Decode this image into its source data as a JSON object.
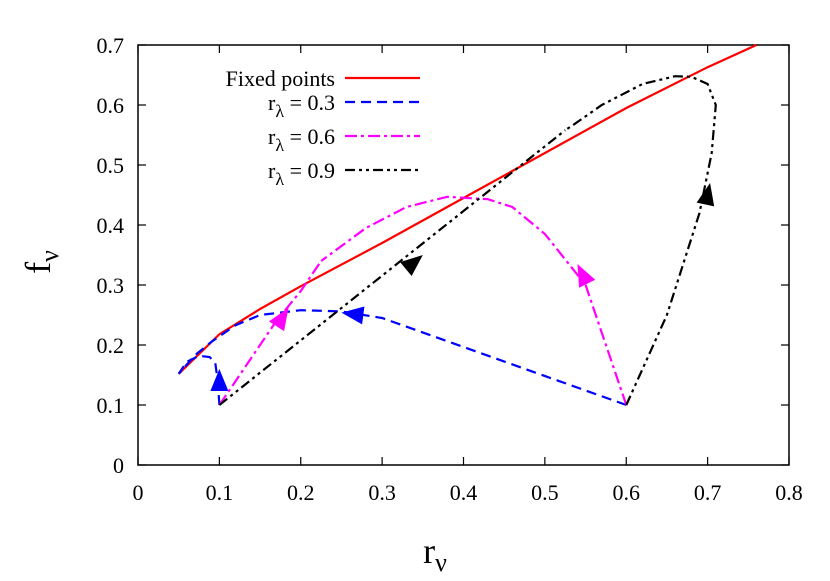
{
  "chart_data": {
    "type": "line",
    "title": "",
    "xlabel": {
      "base": "r",
      "sub": "ν"
    },
    "ylabel": {
      "base": "f",
      "sub": "ν"
    },
    "xlim": [
      0,
      0.8
    ],
    "ylim": [
      0,
      0.7
    ],
    "xticks": [
      "0",
      "0.1",
      "0.2",
      "0.3",
      "0.4",
      "0.5",
      "0.6",
      "0.7",
      "0.8"
    ],
    "yticks": [
      "0",
      "0.1",
      "0.2",
      "0.3",
      "0.4",
      "0.5",
      "0.6",
      "0.7"
    ],
    "grid": false,
    "legend_placement": "top-left",
    "series": [
      {
        "name": {
          "base": "Fixed points",
          "sub": "",
          "rest": ""
        },
        "color": "#ff0000",
        "style": "solid",
        "trajectories": [
          [
            [
              0.05,
              0.152
            ],
            [
              0.1,
              0.218
            ],
            [
              0.15,
              0.26
            ],
            [
              0.2,
              0.298
            ],
            [
              0.3,
              0.37
            ],
            [
              0.4,
              0.445
            ],
            [
              0.5,
              0.52
            ],
            [
              0.6,
              0.595
            ],
            [
              0.7,
              0.663
            ],
            [
              0.76,
              0.7
            ]
          ]
        ],
        "arrows": []
      },
      {
        "name": {
          "base": "r",
          "sub": "λ",
          "rest": " = 0.3"
        },
        "color": "#0000ff",
        "style": "dashed",
        "trajectories": [
          [
            [
              0.6,
              0.1
            ],
            [
              0.3,
              0.245
            ],
            [
              0.25,
              0.256
            ],
            [
              0.2,
              0.258
            ],
            [
              0.15,
              0.25
            ],
            [
              0.12,
              0.233
            ],
            [
              0.09,
              0.205
            ],
            [
              0.07,
              0.183
            ],
            [
              0.05,
              0.152
            ]
          ],
          [
            [
              0.1,
              0.1
            ],
            [
              0.098,
              0.14
            ],
            [
              0.095,
              0.17
            ],
            [
              0.088,
              0.18
            ],
            [
              0.075,
              0.182
            ],
            [
              0.06,
              0.172
            ],
            [
              0.05,
              0.152
            ]
          ]
        ],
        "arrows": [
          [
            [
              0.1,
              0.12
            ],
            [
              0.1,
              0.16
            ]
          ],
          [
            [
              0.29,
              0.247
            ],
            [
              0.25,
              0.254
            ]
          ]
        ]
      },
      {
        "name": {
          "base": "r",
          "sub": "λ",
          "rest": " = 0.6"
        },
        "color": "#ff00ff",
        "style": "dash-dot",
        "trajectories": [
          [
            [
              0.6,
              0.1
            ],
            [
              0.55,
              0.3
            ],
            [
              0.5,
              0.385
            ],
            [
              0.46,
              0.43
            ],
            [
              0.43,
              0.443
            ],
            [
              0.38,
              0.447
            ],
            [
              0.33,
              0.43
            ],
            [
              0.28,
              0.395
            ],
            [
              0.24,
              0.355
            ],
            [
              0.225,
              0.34
            ]
          ],
          [
            [
              0.1,
              0.1
            ],
            [
              0.17,
              0.24
            ],
            [
              0.2,
              0.29
            ],
            [
              0.225,
              0.34
            ]
          ]
        ],
        "arrows": [
          [
            [
              0.16,
              0.21
            ],
            [
              0.185,
              0.262
            ]
          ],
          [
            [
              0.56,
              0.28
            ],
            [
              0.54,
              0.335
            ]
          ]
        ]
      },
      {
        "name": {
          "base": "r",
          "sub": "λ",
          "rest": " = 0.9"
        },
        "color": "#000000",
        "style": "dash-dot-dot",
        "trajectories": [
          [
            [
              0.1,
              0.1
            ],
            [
              0.525,
              0.558
            ]
          ],
          [
            [
              0.6,
              0.1
            ],
            [
              0.65,
              0.25
            ],
            [
              0.69,
              0.42
            ],
            [
              0.705,
              0.52
            ],
            [
              0.71,
              0.6
            ],
            [
              0.7,
              0.635
            ],
            [
              0.68,
              0.647
            ],
            [
              0.66,
              0.648
            ],
            [
              0.62,
              0.635
            ],
            [
              0.57,
              0.6
            ],
            [
              0.535,
              0.567
            ],
            [
              0.525,
              0.558
            ]
          ]
        ],
        "arrows": [
          [
            [
              0.31,
              0.305
            ],
            [
              0.35,
              0.35
            ]
          ],
          [
            [
              0.695,
              0.42
            ],
            [
              0.703,
              0.47
            ]
          ]
        ]
      }
    ]
  }
}
